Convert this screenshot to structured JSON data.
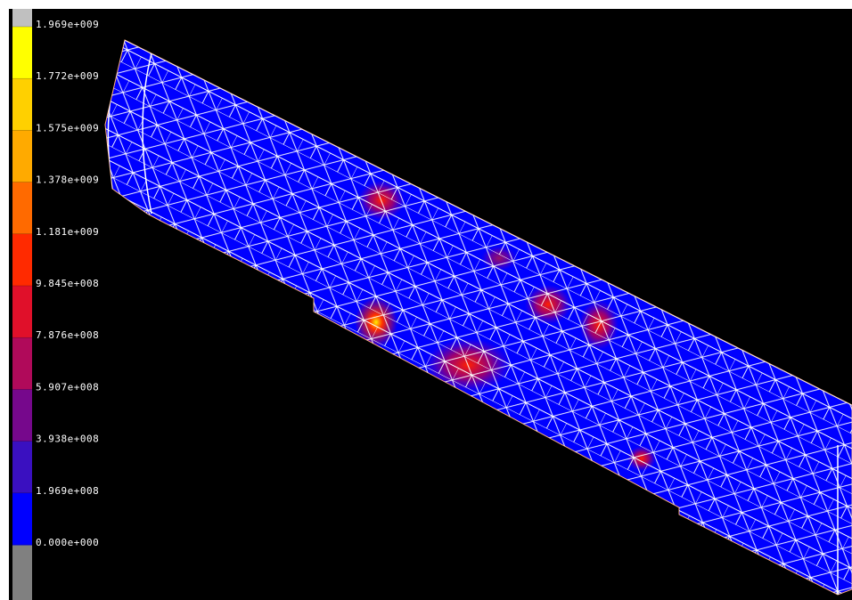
{
  "legend": {
    "labels": [
      "1.969e+009",
      "1.772e+009",
      "1.575e+009",
      "1.378e+009",
      "1.181e+009",
      "9.845e+008",
      "7.876e+008",
      "5.907e+008",
      "3.938e+008",
      "1.969e+008",
      "0.000e+000"
    ],
    "colors": [
      "#ffff00",
      "#ffd000",
      "#ffaa00",
      "#ff6a00",
      "#ff2a00",
      "#e0102a",
      "#b00a5a",
      "#76088c",
      "#3a10c0",
      "#0000ff"
    ]
  }
}
